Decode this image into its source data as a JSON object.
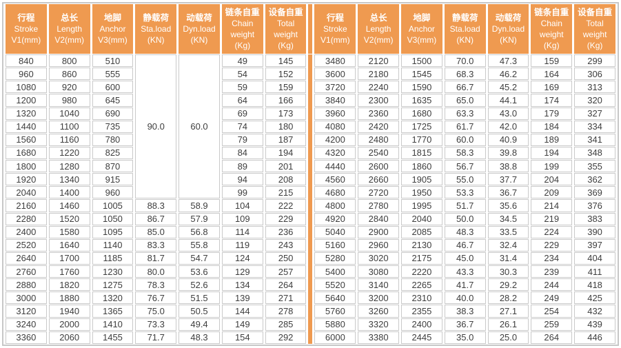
{
  "table": {
    "accent_color": "#EF9A50",
    "border_color": "#c9c9c9",
    "header_text_color": "#ffffff",
    "body_text_color": "#3d3d3d",
    "columns": [
      {
        "id": "stroke",
        "lines": [
          "行程",
          "Stroke",
          "V1(mm)"
        ]
      },
      {
        "id": "length",
        "lines": [
          "总长",
          "Length",
          "V2(mm)"
        ]
      },
      {
        "id": "anchor",
        "lines": [
          "地脚",
          "Anchor",
          "V3(mm)"
        ]
      },
      {
        "id": "sta-load",
        "lines": [
          "静载荷",
          "Sta.load",
          "(KN)"
        ]
      },
      {
        "id": "dyn-load",
        "lines": [
          "动载荷",
          "Dyn.load",
          "(KN)"
        ]
      },
      {
        "id": "chain-weight",
        "lines": [
          "链条自重",
          "Chain",
          "weight",
          "(Kg)"
        ]
      },
      {
        "id": "total-weight",
        "lines": [
          "设备自重",
          "Total",
          "weight",
          "(Kg)"
        ]
      }
    ],
    "left": {
      "merged": {
        "sta_load": "90.0",
        "dyn_load": "60.0",
        "span_rows": 11
      },
      "rows": [
        [
          "840",
          "800",
          "510",
          null,
          null,
          "49",
          "145"
        ],
        [
          "960",
          "860",
          "555",
          null,
          null,
          "54",
          "152"
        ],
        [
          "1080",
          "920",
          "600",
          null,
          null,
          "59",
          "159"
        ],
        [
          "1200",
          "980",
          "645",
          null,
          null,
          "64",
          "166"
        ],
        [
          "1320",
          "1040",
          "690",
          null,
          null,
          "69",
          "173"
        ],
        [
          "1440",
          "1100",
          "735",
          null,
          null,
          "74",
          "180"
        ],
        [
          "1560",
          "1160",
          "780",
          null,
          null,
          "79",
          "187"
        ],
        [
          "1680",
          "1220",
          "825",
          null,
          null,
          "84",
          "194"
        ],
        [
          "1800",
          "1280",
          "870",
          null,
          null,
          "89",
          "201"
        ],
        [
          "1920",
          "1340",
          "915",
          null,
          null,
          "94",
          "208"
        ],
        [
          "2040",
          "1400",
          "960",
          null,
          null,
          "99",
          "215"
        ],
        [
          "2160",
          "1460",
          "1005",
          "88.3",
          "58.9",
          "104",
          "222"
        ],
        [
          "2280",
          "1520",
          "1050",
          "86.7",
          "57.9",
          "109",
          "229"
        ],
        [
          "2400",
          "1580",
          "1095",
          "85.0",
          "56.8",
          "114",
          "236"
        ],
        [
          "2520",
          "1640",
          "1140",
          "83.3",
          "55.8",
          "119",
          "243"
        ],
        [
          "2640",
          "1700",
          "1185",
          "81.7",
          "54.7",
          "124",
          "250"
        ],
        [
          "2760",
          "1760",
          "1230",
          "80.0",
          "53.6",
          "129",
          "257"
        ],
        [
          "2880",
          "1820",
          "1275",
          "78.3",
          "52.6",
          "134",
          "264"
        ],
        [
          "3000",
          "1880",
          "1320",
          "76.7",
          "51.5",
          "139",
          "271"
        ],
        [
          "3120",
          "1940",
          "1365",
          "75.0",
          "50.5",
          "144",
          "278"
        ],
        [
          "3240",
          "2000",
          "1410",
          "73.3",
          "49.4",
          "149",
          "285"
        ],
        [
          "3360",
          "2060",
          "1455",
          "71.7",
          "48.3",
          "154",
          "292"
        ]
      ]
    },
    "right": {
      "rows": [
        [
          "3480",
          "2120",
          "1500",
          "70.0",
          "47.3",
          "159",
          "299"
        ],
        [
          "3600",
          "2180",
          "1545",
          "68.3",
          "46.2",
          "164",
          "306"
        ],
        [
          "3720",
          "2240",
          "1590",
          "66.7",
          "45.2",
          "169",
          "313"
        ],
        [
          "3840",
          "2300",
          "1635",
          "65.0",
          "44.1",
          "174",
          "320"
        ],
        [
          "3960",
          "2360",
          "1680",
          "63.3",
          "43.0",
          "179",
          "327"
        ],
        [
          "4080",
          "2420",
          "1725",
          "61.7",
          "42.0",
          "184",
          "334"
        ],
        [
          "4200",
          "2480",
          "1770",
          "60.0",
          "40.9",
          "189",
          "341"
        ],
        [
          "4320",
          "2540",
          "1815",
          "58.3",
          "39.8",
          "194",
          "348"
        ],
        [
          "4440",
          "2600",
          "1860",
          "56.7",
          "38.8",
          "199",
          "355"
        ],
        [
          "4560",
          "2660",
          "1905",
          "55.0",
          "37.7",
          "204",
          "362"
        ],
        [
          "4680",
          "2720",
          "1950",
          "53.3",
          "36.7",
          "209",
          "369"
        ],
        [
          "4800",
          "2780",
          "1995",
          "51.7",
          "35.6",
          "214",
          "376"
        ],
        [
          "4920",
          "2840",
          "2040",
          "50.0",
          "34.5",
          "219",
          "383"
        ],
        [
          "5040",
          "2900",
          "2085",
          "48.3",
          "33.5",
          "224",
          "390"
        ],
        [
          "5160",
          "2960",
          "2130",
          "46.7",
          "32.4",
          "229",
          "397"
        ],
        [
          "5280",
          "3020",
          "2175",
          "45.0",
          "31.4",
          "234",
          "404"
        ],
        [
          "5400",
          "3080",
          "2220",
          "43.3",
          "30.3",
          "239",
          "411"
        ],
        [
          "5520",
          "3140",
          "2265",
          "41.7",
          "29.2",
          "244",
          "418"
        ],
        [
          "5640",
          "3200",
          "2310",
          "40.0",
          "28.2",
          "249",
          "425"
        ],
        [
          "5760",
          "3260",
          "2355",
          "38.3",
          "27.1",
          "254",
          "432"
        ],
        [
          "5880",
          "3320",
          "2400",
          "36.7",
          "26.1",
          "259",
          "439"
        ],
        [
          "6000",
          "3380",
          "2445",
          "35.0",
          "25.0",
          "264",
          "446"
        ]
      ]
    }
  }
}
